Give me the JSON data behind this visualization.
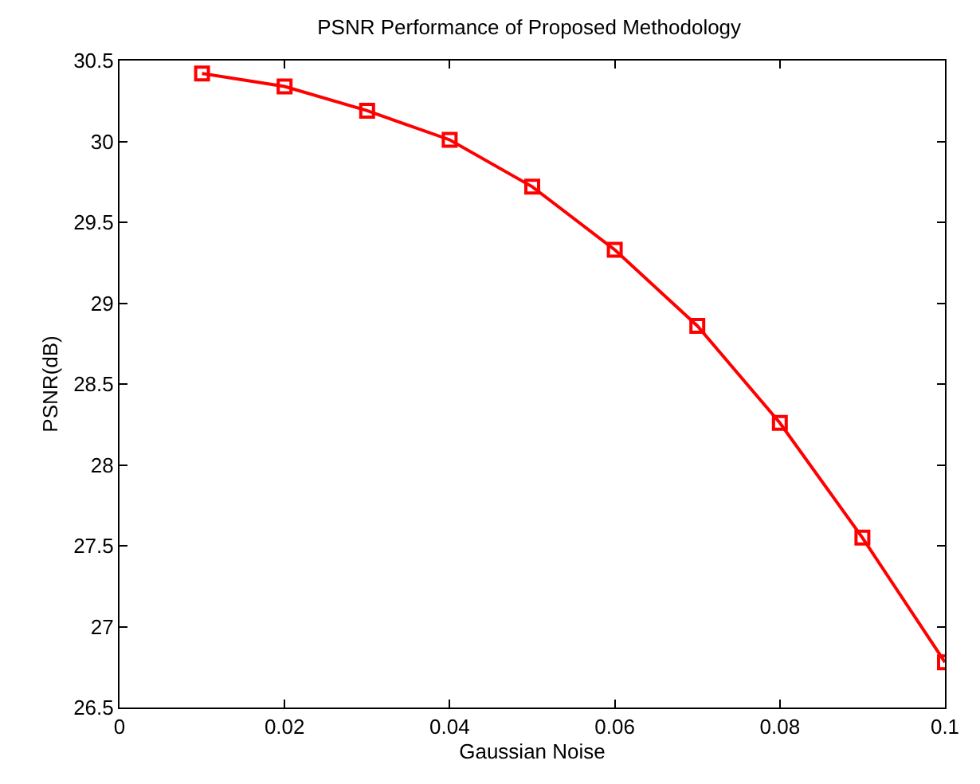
{
  "chart_data": {
    "type": "line",
    "title": "PSNR Performance of Proposed Methodology",
    "xlabel": "Gaussian Noise",
    "ylabel": "PSNR(dB)",
    "x": [
      0.01,
      0.02,
      0.03,
      0.04,
      0.05,
      0.06,
      0.07,
      0.08,
      0.09,
      0.1
    ],
    "series": [
      {
        "color": "#ff0000",
        "values": [
          30.42,
          30.34,
          30.19,
          30.01,
          29.72,
          29.33,
          28.86,
          28.26,
          27.55,
          26.78
        ]
      }
    ],
    "xlim": [
      0,
      0.1
    ],
    "xticks": [
      0,
      0.02,
      0.04,
      0.06,
      0.08,
      0.1
    ],
    "ylim": [
      26.5,
      30.5
    ],
    "yticks": [
      26.5,
      27,
      27.5,
      28,
      28.5,
      29,
      29.5,
      30,
      30.5
    ],
    "marker": "square",
    "line_style": "solid"
  }
}
